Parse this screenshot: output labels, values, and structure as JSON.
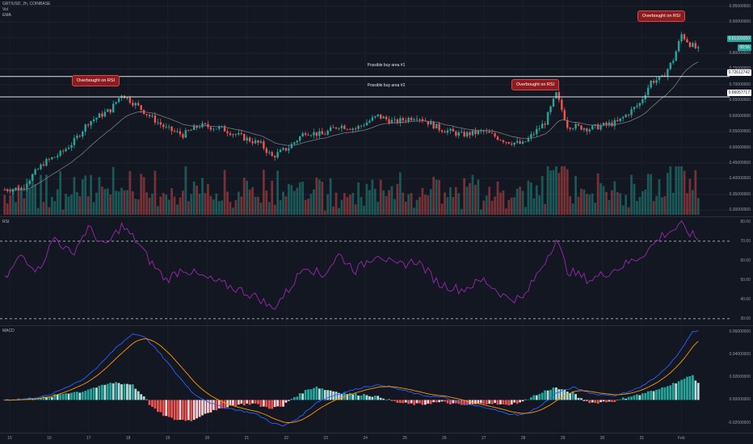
{
  "header": {
    "symbol": "GRT/USD, 2h, COINBASE",
    "line2": "Vol",
    "line3": "EMA"
  },
  "colors": {
    "background": "#131722",
    "up": "#26a69a",
    "down": "#ef5350",
    "rsi": "#9c27b0",
    "macd": "#2962ff",
    "signal": "#ff9800",
    "callout": "#8e1b1e"
  },
  "annotations": {
    "callouts": [
      "Overbought on RSI",
      "Overbought on RSI",
      "Overbought on RSI"
    ],
    "zones": [
      {
        "label": "Possible buy area #1",
        "tag": "0.72612742"
      },
      {
        "label": "Possible buy area #2",
        "tag": "0.66057717"
      }
    ],
    "last_price": "0.81000000",
    "last_price_sub": "00:56"
  },
  "chart_data": [
    {
      "type": "candlestick",
      "title": "GRT/USD, 2h, COINBASE",
      "x_tick_labels": [
        "15",
        "16",
        "17",
        "18",
        "19",
        "20",
        "21",
        "22",
        "23",
        "24",
        "25",
        "26",
        "27",
        "28",
        "29",
        "30",
        "31",
        "Feb"
      ],
      "y_tick_labels": [
        "0.95000000",
        "0.90000000",
        "0.85000000",
        "0.80000000",
        "0.75000000",
        "0.70000000",
        "0.65000000",
        "0.60000000",
        "0.55000000",
        "0.50000000",
        "0.45000000",
        "0.40000000",
        "0.35000000",
        "0.30000000"
      ],
      "ylim": [
        0.28,
        0.97
      ],
      "horizontal_lines": [
        0.726,
        0.661
      ],
      "anchors": [
        [
          0,
          0.365
        ],
        [
          6,
          0.37
        ],
        [
          14,
          0.45
        ],
        [
          20,
          0.48
        ],
        [
          25,
          0.52
        ],
        [
          30,
          0.58
        ],
        [
          38,
          0.62
        ],
        [
          42,
          0.67
        ],
        [
          48,
          0.63
        ],
        [
          52,
          0.6
        ],
        [
          58,
          0.56
        ],
        [
          64,
          0.54
        ],
        [
          70,
          0.57
        ],
        [
          78,
          0.56
        ],
        [
          86,
          0.53
        ],
        [
          92,
          0.51
        ],
        [
          96,
          0.47
        ],
        [
          102,
          0.5
        ],
        [
          108,
          0.55
        ],
        [
          114,
          0.54
        ],
        [
          120,
          0.57
        ],
        [
          126,
          0.56
        ],
        [
          134,
          0.6
        ],
        [
          140,
          0.58
        ],
        [
          148,
          0.6
        ],
        [
          156,
          0.56
        ],
        [
          164,
          0.54
        ],
        [
          172,
          0.55
        ],
        [
          180,
          0.52
        ],
        [
          186,
          0.51
        ],
        [
          194,
          0.58
        ],
        [
          198,
          0.67
        ],
        [
          202,
          0.57
        ],
        [
          210,
          0.56
        ],
        [
          220,
          0.58
        ],
        [
          228,
          0.64
        ],
        [
          232,
          0.71
        ],
        [
          236,
          0.72
        ],
        [
          240,
          0.78
        ],
        [
          243,
          0.86
        ],
        [
          246,
          0.83
        ],
        [
          249,
          0.81
        ]
      ],
      "n_candles": 250,
      "ema_length": 20
    },
    {
      "type": "line",
      "name": "RSI",
      "y_tick_labels": [
        "80.00",
        "70.00",
        "60.00",
        "50.00",
        "40.00",
        "30.00"
      ],
      "ylim": [
        27,
        82
      ],
      "bands": [
        70,
        30
      ],
      "anchors": [
        [
          0,
          50
        ],
        [
          6,
          63
        ],
        [
          12,
          55
        ],
        [
          18,
          72
        ],
        [
          24,
          63
        ],
        [
          30,
          77
        ],
        [
          36,
          67
        ],
        [
          42,
          78
        ],
        [
          48,
          69
        ],
        [
          52,
          60
        ],
        [
          58,
          50
        ],
        [
          64,
          56
        ],
        [
          70,
          52
        ],
        [
          78,
          48
        ],
        [
          86,
          44
        ],
        [
          92,
          40
        ],
        [
          96,
          35
        ],
        [
          102,
          45
        ],
        [
          108,
          58
        ],
        [
          114,
          52
        ],
        [
          120,
          63
        ],
        [
          126,
          55
        ],
        [
          134,
          64
        ],
        [
          140,
          57
        ],
        [
          148,
          60
        ],
        [
          156,
          48
        ],
        [
          164,
          45
        ],
        [
          172,
          50
        ],
        [
          180,
          41
        ],
        [
          186,
          40
        ],
        [
          194,
          60
        ],
        [
          198,
          71
        ],
        [
          202,
          55
        ],
        [
          210,
          50
        ],
        [
          220,
          56
        ],
        [
          228,
          62
        ],
        [
          232,
          67
        ],
        [
          236,
          73
        ],
        [
          240,
          76
        ],
        [
          243,
          78
        ],
        [
          246,
          74
        ],
        [
          249,
          71
        ]
      ]
    },
    {
      "type": "line",
      "name": "MACD",
      "y_tick_labels": [
        "0.06000000",
        "0.04000000",
        "0.02000000",
        "0.00000000",
        "-0.02000000"
      ],
      "ylim": [
        -0.028,
        0.064
      ],
      "anchors": [
        [
          0,
          0.0
        ],
        [
          8,
          0.001
        ],
        [
          16,
          0.004
        ],
        [
          22,
          0.011
        ],
        [
          28,
          0.018
        ],
        [
          34,
          0.03
        ],
        [
          40,
          0.046
        ],
        [
          46,
          0.058
        ],
        [
          50,
          0.056
        ],
        [
          56,
          0.04
        ],
        [
          62,
          0.022
        ],
        [
          68,
          0.005
        ],
        [
          76,
          -0.005
        ],
        [
          84,
          -0.009
        ],
        [
          90,
          -0.012
        ],
        [
          96,
          -0.02
        ],
        [
          100,
          -0.023
        ],
        [
          106,
          -0.015
        ],
        [
          112,
          -0.002
        ],
        [
          118,
          0.004
        ],
        [
          124,
          0.008
        ],
        [
          130,
          0.012
        ],
        [
          136,
          0.013
        ],
        [
          142,
          0.009
        ],
        [
          150,
          0.004
        ],
        [
          158,
          0.002
        ],
        [
          166,
          -0.004
        ],
        [
          174,
          -0.007
        ],
        [
          180,
          -0.012
        ],
        [
          186,
          -0.013
        ],
        [
          192,
          -0.006
        ],
        [
          198,
          0.006
        ],
        [
          204,
          0.011
        ],
        [
          212,
          0.005
        ],
        [
          220,
          0.004
        ],
        [
          228,
          0.011
        ],
        [
          234,
          0.02
        ],
        [
          240,
          0.035
        ],
        [
          244,
          0.048
        ],
        [
          247,
          0.06
        ],
        [
          249,
          0.061
        ]
      ],
      "signal_length": 9
    }
  ]
}
